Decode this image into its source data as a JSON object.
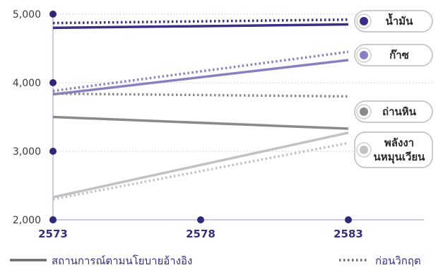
{
  "chart_data": {
    "type": "line",
    "x": [
      2573,
      2583
    ],
    "x_ticks": [
      "2573",
      "2578",
      "2583"
    ],
    "y_ticks": [
      "2,000",
      "3,000",
      "4,000",
      "5,000"
    ],
    "ylim": [
      2000,
      5000
    ],
    "xlim": [
      2573,
      2585.5
    ],
    "grid": "dotted horizontal",
    "series": [
      {
        "name": "น้ำมัน",
        "color": "#3b2e85",
        "reference": [
          4800,
          4850
        ],
        "pre_crisis": [
          4870,
          4920
        ]
      },
      {
        "name": "ก๊าซ",
        "color": "#8a80bf",
        "reference": [
          3830,
          4330
        ],
        "pre_crisis": [
          3880,
          4450
        ]
      },
      {
        "name": "ถ่านหิน",
        "color": "#8a8a8a",
        "reference": [
          3500,
          3330
        ],
        "pre_crisis": [
          3840,
          3800
        ]
      },
      {
        "name": "พลังงานหมุนเวียน",
        "color": "#c2c2c2",
        "reference": [
          2330,
          3270
        ],
        "pre_crisis": [
          2300,
          3120
        ]
      }
    ],
    "legend": {
      "reference_label": "สถานการณ์ตามนโยบายอ้างอิง",
      "pre_crisis_label": "ก่อนวิกฤต"
    }
  }
}
